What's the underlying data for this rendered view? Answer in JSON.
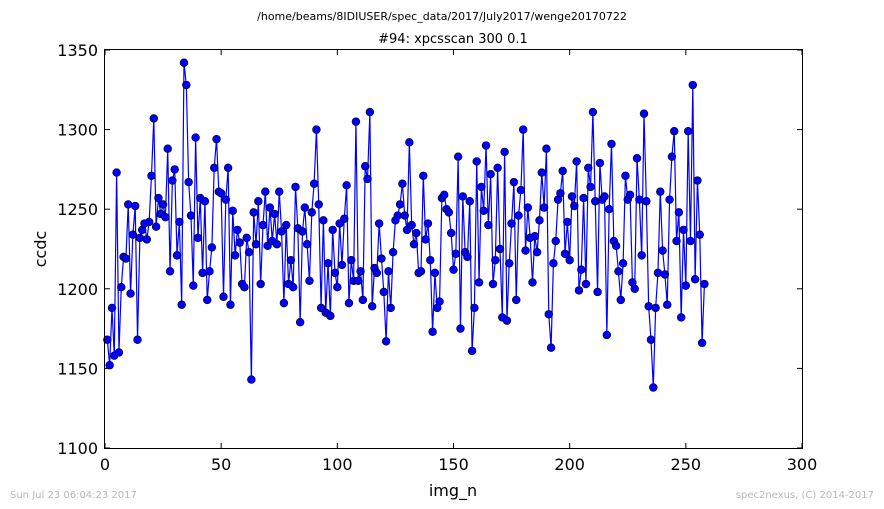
{
  "header": {
    "suptitle": "/home/beams/8IDIUSER/spec_data/2017/July2017/wenge20170722",
    "title": "#94: xpcsscan 300 0.1"
  },
  "footer": {
    "timestamp": "Sun Jul 23 06:04:23 2017",
    "credit": "spec2nexus, (C) 2014-2017"
  },
  "chart_data": {
    "type": "line",
    "title": "#94: xpcsscan 300 0.1",
    "xlabel": "img_n",
    "ylabel": "ccdc",
    "xlim": [
      0,
      300
    ],
    "ylim": [
      1100,
      1350
    ],
    "xticks": [
      0,
      50,
      100,
      150,
      200,
      250,
      300
    ],
    "yticks": [
      1100,
      1150,
      1200,
      1250,
      1300,
      1350
    ],
    "grid": false,
    "colors": {
      "line": "#0000ff",
      "marker": "#0000ff"
    },
    "series": [
      {
        "x_start": 1,
        "x_step": 1,
        "values": [
          1168,
          1152,
          1188,
          1158,
          1273,
          1160,
          1201,
          1220,
          1219,
          1253,
          1197,
          1234,
          1252,
          1168,
          1232,
          1237,
          1241,
          1231,
          1242,
          1271,
          1307,
          1239,
          1257,
          1247,
          1253,
          1245,
          1288,
          1211,
          1268,
          1275,
          1221,
          1242,
          1190,
          1342,
          1328,
          1267,
          1246,
          1202,
          1295,
          1232,
          1257,
          1210,
          1255,
          1193,
          1211,
          1226,
          1276,
          1294,
          1261,
          1260,
          1195,
          1256,
          1276,
          1190,
          1249,
          1221,
          1237,
          1229,
          1203,
          1201,
          1232,
          1223,
          1143,
          1248,
          1228,
          1255,
          1203,
          1240,
          1261,
          1227,
          1251,
          1230,
          1247,
          1228,
          1261,
          1236,
          1191,
          1240,
          1203,
          1218,
          1201,
          1264,
          1238,
          1179,
          1236,
          1251,
          1228,
          1205,
          1248,
          1266,
          1300,
          1253,
          1188,
          1243,
          1185,
          1216,
          1183,
          1237,
          1210,
          1201,
          1241,
          1215,
          1244,
          1265,
          1191,
          1218,
          1205,
          1305,
          1205,
          1211,
          1193,
          1277,
          1269,
          1311,
          1189,
          1213,
          1210,
          1241,
          1219,
          1198,
          1167,
          1211,
          1188,
          1223,
          1243,
          1246,
          1253,
          1266,
          1246,
          1237,
          1292,
          1240,
          1228,
          1235,
          1210,
          1211,
          1271,
          1231,
          1241,
          1218,
          1173,
          1210,
          1188,
          1192,
          1257,
          1259,
          1250,
          1248,
          1235,
          1212,
          1222,
          1283,
          1175,
          1258,
          1223,
          1220,
          1255,
          1161,
          1188,
          1280,
          1204,
          1264,
          1249,
          1290,
          1240,
          1272,
          1203,
          1218,
          1276,
          1225,
          1182,
          1286,
          1180,
          1216,
          1241,
          1267,
          1193,
          1246,
          1262,
          1300,
          1224,
          1251,
          1232,
          1204,
          1233,
          1223,
          1243,
          1273,
          1251,
          1288,
          1184,
          1163,
          1216,
          1230,
          1256,
          1260,
          1274,
          1222,
          1242,
          1218,
          1258,
          1252,
          1280,
          1199,
          1212,
          1257,
          1203,
          1276,
          1264,
          1311,
          1255,
          1198,
          1279,
          1256,
          1258,
          1171,
          1250,
          1291,
          1230,
          1227,
          1211,
          1193,
          1216,
          1271,
          1256,
          1259,
          1204,
          1200,
          1282,
          1256,
          1221,
          1310,
          1255,
          1189,
          1168,
          1138,
          1188,
          1210,
          1261,
          1224,
          1209,
          1190,
          1256,
          1283,
          1299,
          1230,
          1248,
          1182,
          1237,
          1202,
          1299,
          1230,
          1328,
          1206,
          1268,
          1234,
          1166,
          1203
        ]
      }
    ]
  }
}
